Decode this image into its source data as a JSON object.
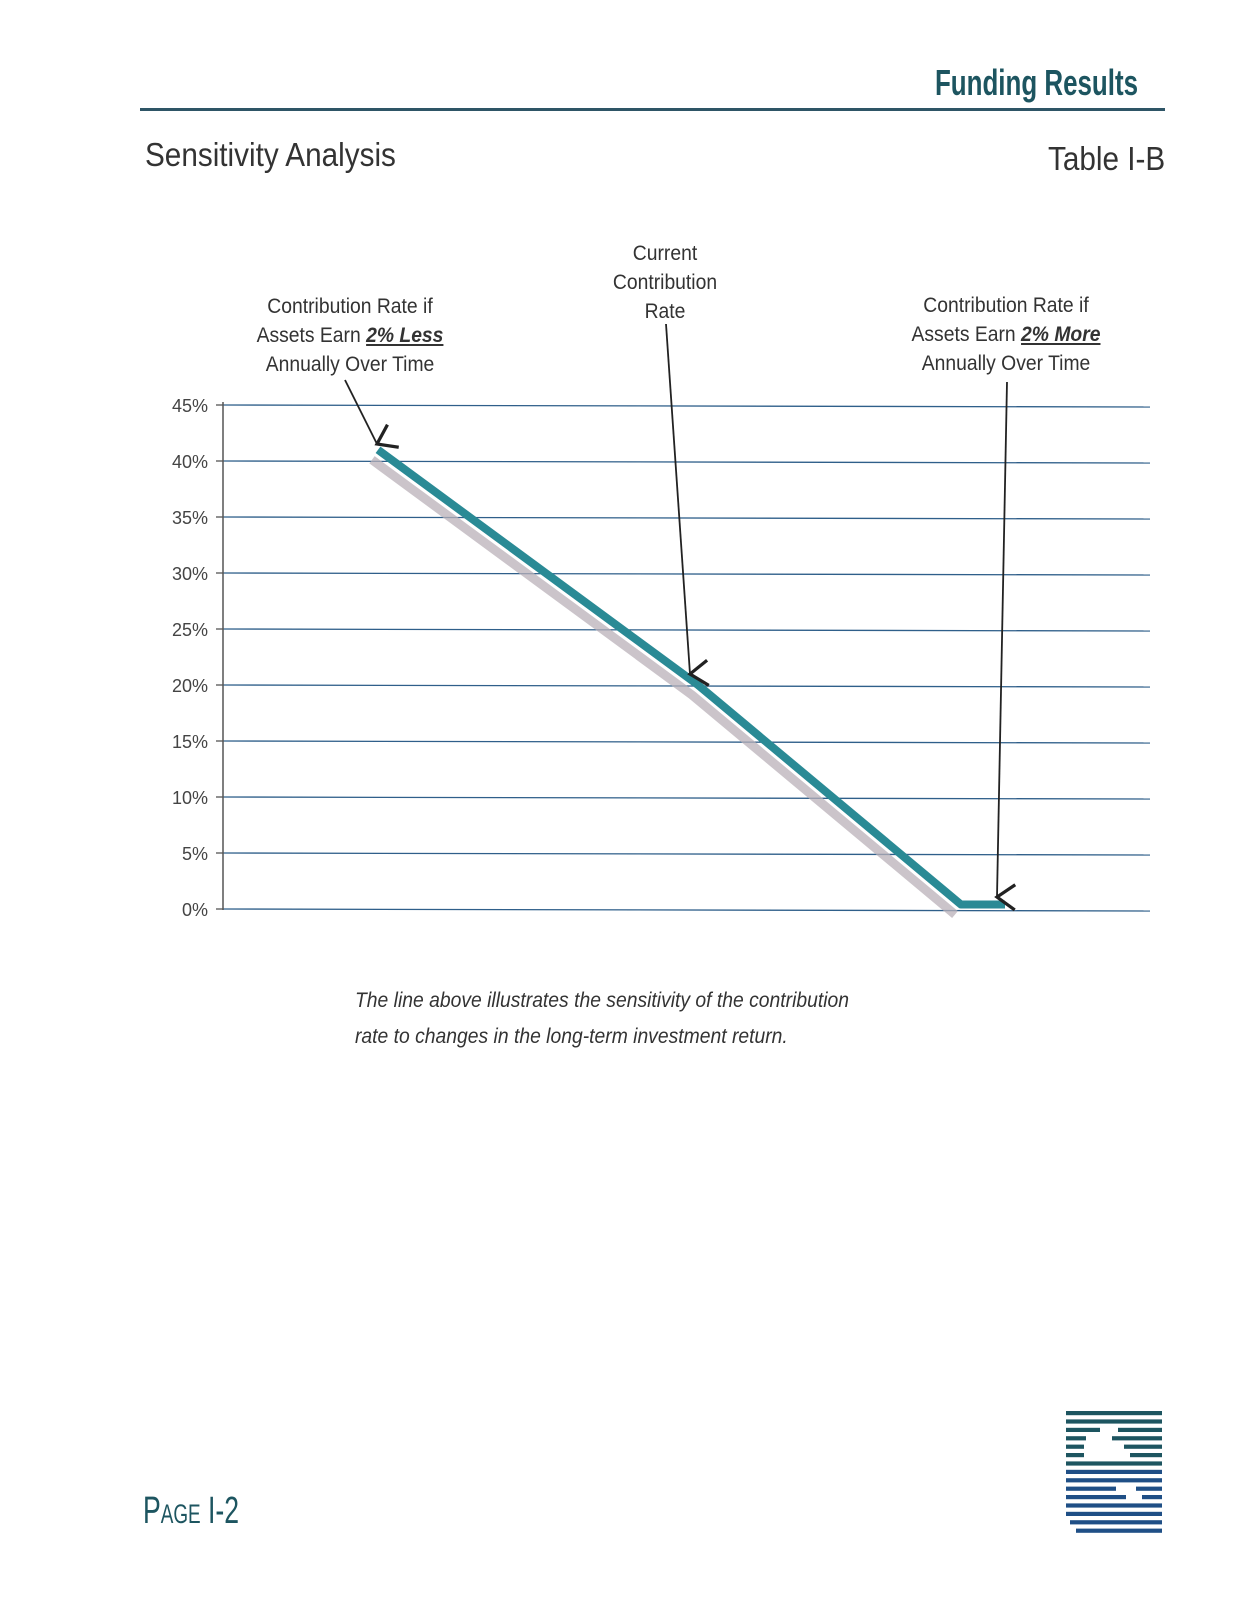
{
  "header": {
    "section": "Funding Results",
    "title": "Sensitivity Analysis",
    "table_label": "Table I-B"
  },
  "annotations": {
    "less": {
      "line1": "Contribution Rate if",
      "line2_prefix": "Assets Earn ",
      "line2_emph": "2% Less",
      "line3": "Annually Over Time"
    },
    "current": {
      "line1": "Current",
      "line2": "Contribution",
      "line3": "Rate"
    },
    "more": {
      "line1": "Contribution Rate if",
      "line2_prefix": "Assets Earn ",
      "line2_emph": "2% More",
      "line3": "Annually Over Time"
    }
  },
  "caption": {
    "line1": "The line above illustrates the sensitivity of the contribution",
    "line2": "rate to changes in the long-term investment return."
  },
  "footer": {
    "page": "Page I-2"
  },
  "logo_icon": "sis-logo-icon",
  "colors": {
    "brand": "#1d5560",
    "line": "#2a8a95",
    "grid": "#2f5f8a",
    "shadow": "#b9b0b8",
    "logo": "#1f4f86"
  },
  "chart_data": {
    "type": "line",
    "title": "",
    "xlabel": "",
    "ylabel": "",
    "ylim": [
      0,
      45
    ],
    "yticks": [
      0,
      5,
      10,
      15,
      20,
      25,
      30,
      35,
      40,
      45
    ],
    "ytick_labels": [
      "0%",
      "5%",
      "10%",
      "15%",
      "20%",
      "25%",
      "30%",
      "35%",
      "40%",
      "45%"
    ],
    "grid": true,
    "x_categories": [
      "2% Less",
      "Current",
      "2% More"
    ],
    "series": [
      {
        "points": [
          {
            "x": "2% Less",
            "y": 41
          },
          {
            "x": "Current",
            "y": 20
          },
          {
            "x": "2% More (floor)",
            "y": 0.4
          },
          {
            "x": "2% More",
            "y": 0.4
          }
        ]
      }
    ]
  }
}
